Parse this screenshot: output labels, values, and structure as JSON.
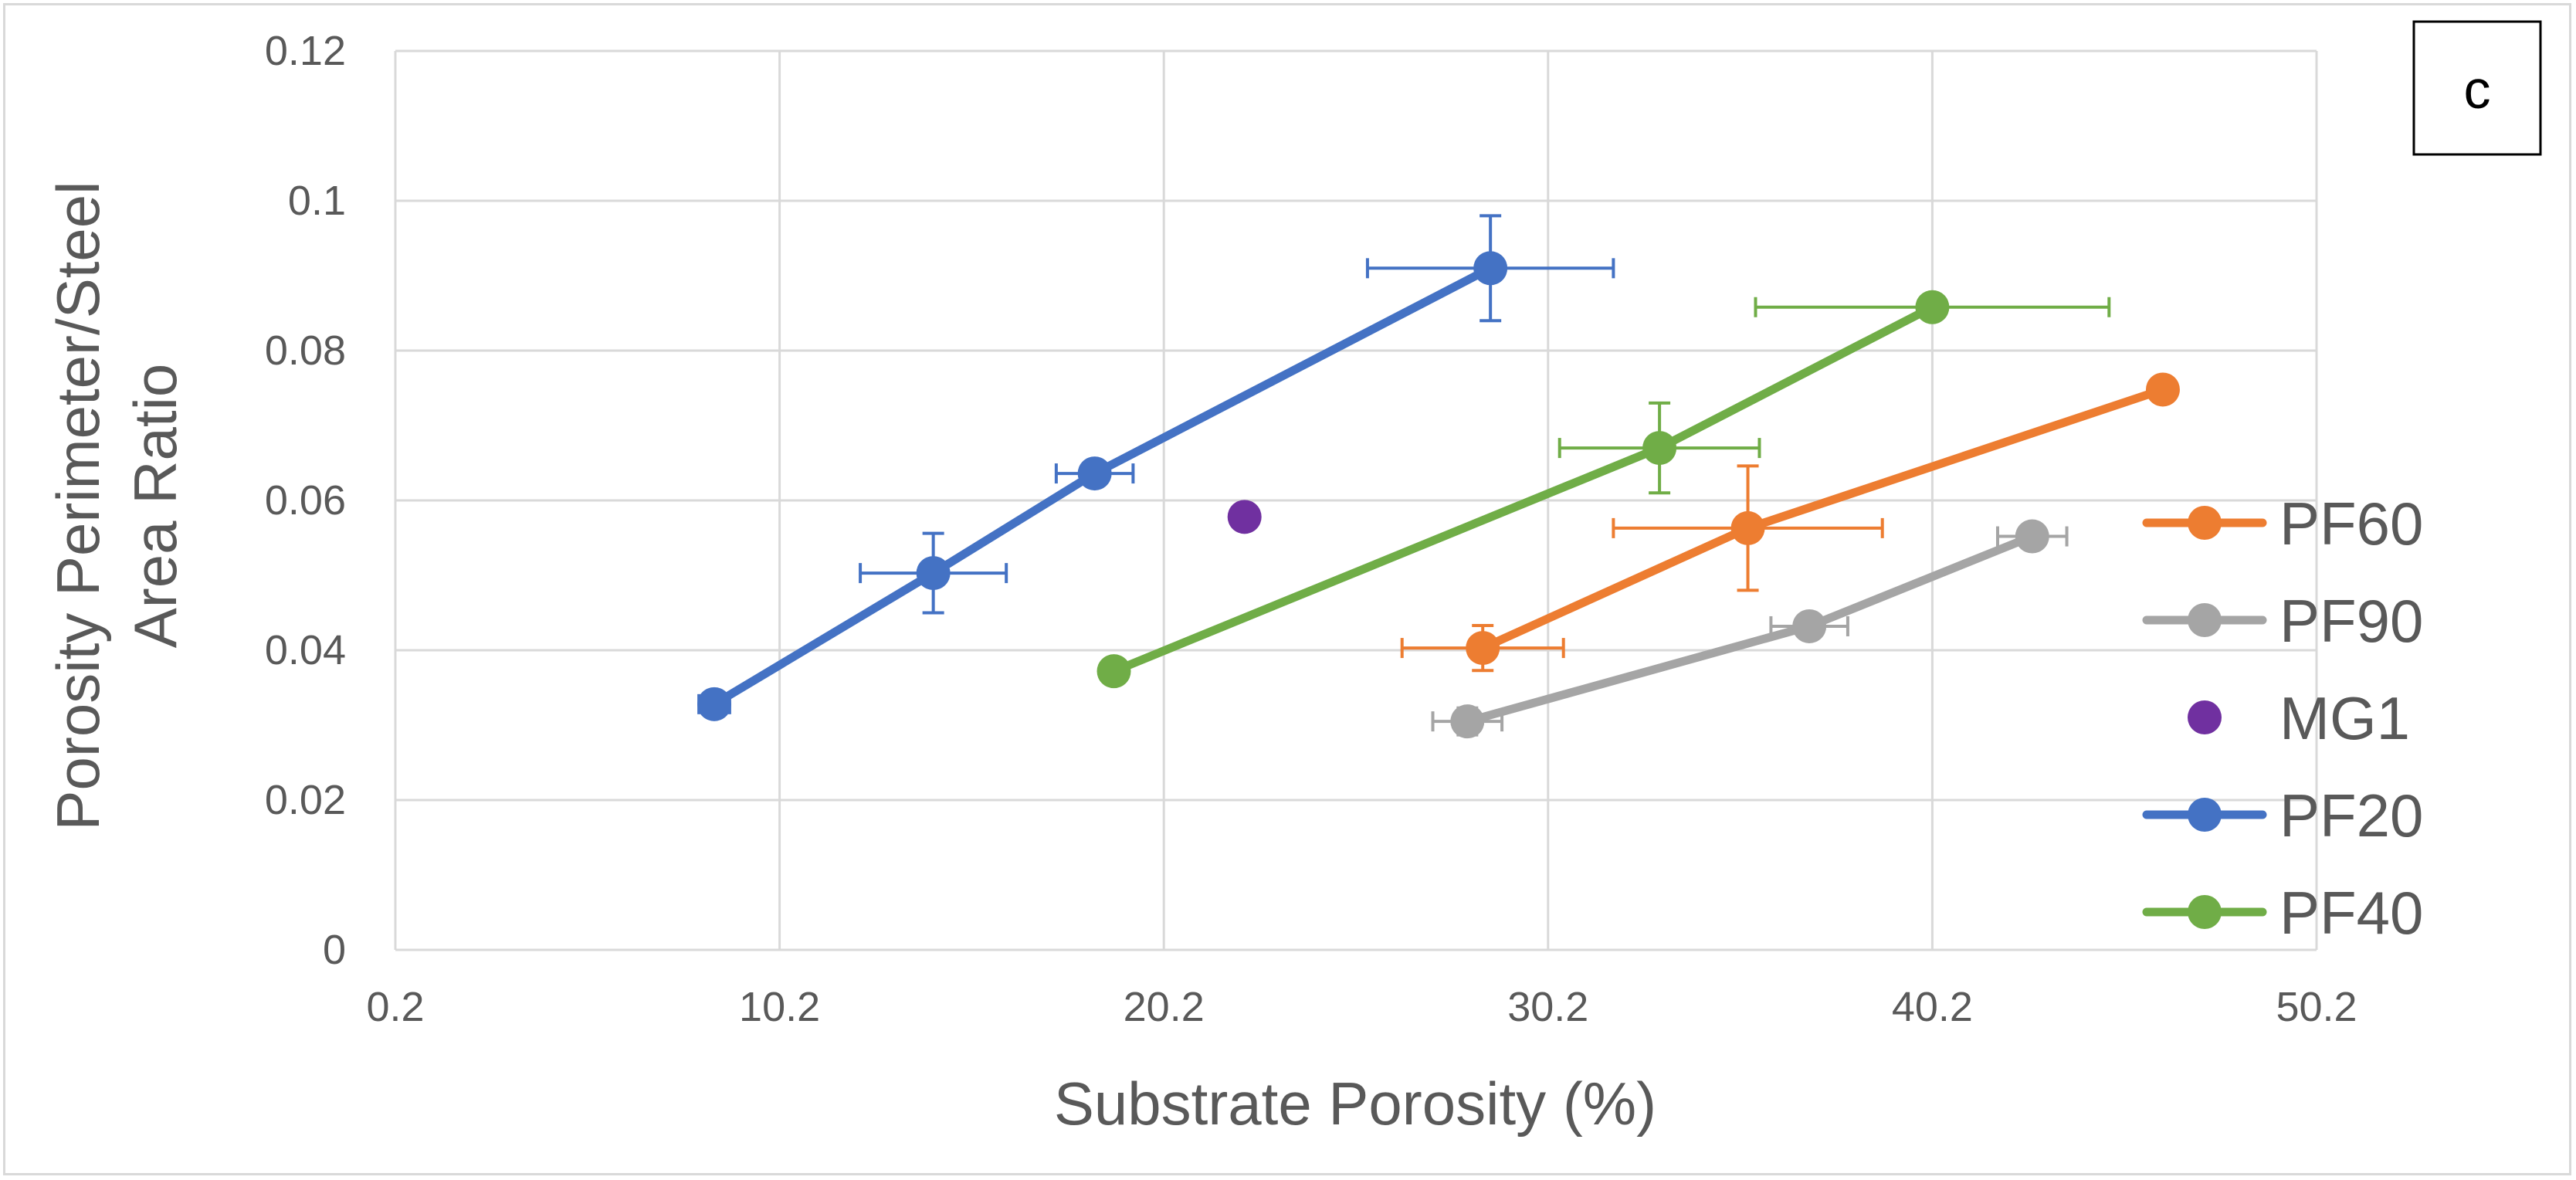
{
  "chart_data": {
    "type": "scatter",
    "title": "",
    "panel_label": "c",
    "xlabel": "Substrate Porosity (%)",
    "ylabel_line1": "Porosity Perimeter/Steel",
    "ylabel_line2": "Area Ratio",
    "xlim": [
      0.2,
      50.2
    ],
    "ylim": [
      0,
      0.12
    ],
    "x_ticks": [
      0.2,
      10.2,
      20.2,
      30.2,
      40.2,
      50.2
    ],
    "x_tick_labels": [
      "0.2",
      "10.2",
      "20.2",
      "30.2",
      "40.2",
      "50.2"
    ],
    "y_ticks": [
      0,
      0.02,
      0.04,
      0.06,
      0.08,
      0.1,
      0.12
    ],
    "y_tick_labels": [
      "0",
      "0.02",
      "0.04",
      "0.06",
      "0.08",
      "0.1",
      "0.12"
    ],
    "grid": true,
    "legend_position": "right",
    "series": [
      {
        "name": "PF60",
        "color": "#ed7d31",
        "line": true,
        "marker": "circle",
        "points": [
          {
            "x": 28.5,
            "y": 0.0403,
            "xerr": 2.1,
            "yerr": 0.003
          },
          {
            "x": 35.4,
            "y": 0.0563,
            "xerr": 3.5,
            "yerr": 0.0083
          },
          {
            "x": 46.2,
            "y": 0.0748,
            "xerr": 0.3,
            "yerr": 0.0015
          }
        ]
      },
      {
        "name": "PF90",
        "color": "#a5a5a5",
        "line": true,
        "marker": "circle",
        "points": [
          {
            "x": 28.1,
            "y": 0.0305,
            "xerr": 0.9,
            "yerr": 0.0018
          },
          {
            "x": 37.0,
            "y": 0.0432,
            "xerr": 1.0,
            "yerr": 0.0012
          },
          {
            "x": 42.8,
            "y": 0.0552,
            "xerr": 0.9,
            "yerr": 0.0007
          }
        ]
      },
      {
        "name": "MG1",
        "color": "#7030a0",
        "line": false,
        "marker": "circle",
        "points": [
          {
            "x": 22.3,
            "y": 0.0578,
            "xerr": 0,
            "yerr": 0
          }
        ]
      },
      {
        "name": "PF20",
        "color": "#4472c4",
        "line": true,
        "marker": "circle",
        "points": [
          {
            "x": 8.5,
            "y": 0.0328,
            "xerr": 0.4,
            "yerr": 0.0007
          },
          {
            "x": 14.2,
            "y": 0.0503,
            "xerr": 1.9,
            "yerr": 0.0053
          },
          {
            "x": 18.4,
            "y": 0.0636,
            "xerr": 1.0,
            "yerr": 0.001
          },
          {
            "x": 28.7,
            "y": 0.091,
            "xerr": 3.2,
            "yerr": 0.007
          }
        ]
      },
      {
        "name": "PF40",
        "color": "#70ad47",
        "line": true,
        "marker": "circle",
        "points": [
          {
            "x": 18.9,
            "y": 0.0372,
            "xerr": 0.3,
            "yerr": 0.0007
          },
          {
            "x": 33.1,
            "y": 0.067,
            "xerr": 2.6,
            "yerr": 0.006
          },
          {
            "x": 40.2,
            "y": 0.0858,
            "xerr": 4.6,
            "yerr": 0.0007
          }
        ]
      }
    ],
    "legend_order": [
      "PF60",
      "PF90",
      "MG1",
      "PF20",
      "PF40"
    ]
  }
}
